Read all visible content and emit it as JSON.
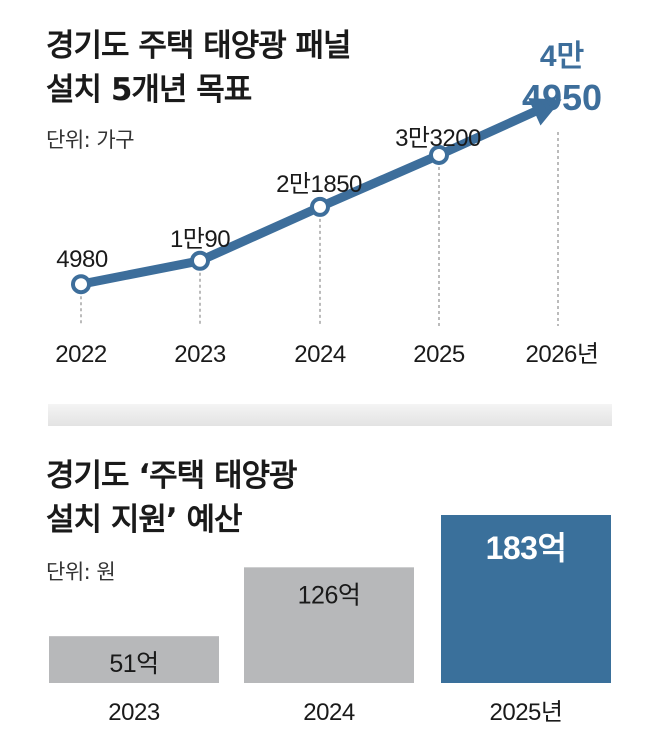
{
  "top": {
    "title_line1": "경기도 주택 태양광 패널",
    "title_line2": "설치 5개년 목표",
    "unit": "단위: 가구"
  },
  "bottom": {
    "title_line1": "경기도 ‘주택 태양광",
    "title_line2": "설치 지원’ 예산",
    "unit": "단위: 원"
  },
  "colors": {
    "line": "#3d6e9b",
    "bar_gray": "#b7b8ba",
    "bar_highlight": "#3a709b",
    "text": "#1a1a1a"
  },
  "chart_data": [
    {
      "type": "line",
      "x": [
        "2022",
        "2023",
        "2024",
        "2025",
        "2026년"
      ],
      "values": [
        4980,
        10090,
        21850,
        33200,
        44950
      ],
      "value_labels": [
        "4980",
        "1만90",
        "2만1850",
        "3만3200",
        "4만\n4950"
      ],
      "ylim": [
        0,
        50000
      ],
      "grid": false,
      "final_point_arrow": true
    },
    {
      "type": "bar",
      "categories": [
        "2023",
        "2024",
        "2025년"
      ],
      "values": [
        51,
        126,
        183
      ],
      "value_labels": [
        "51억",
        "126억",
        "183억"
      ],
      "ylim": [
        0,
        200
      ],
      "highlight_index": 2
    }
  ]
}
